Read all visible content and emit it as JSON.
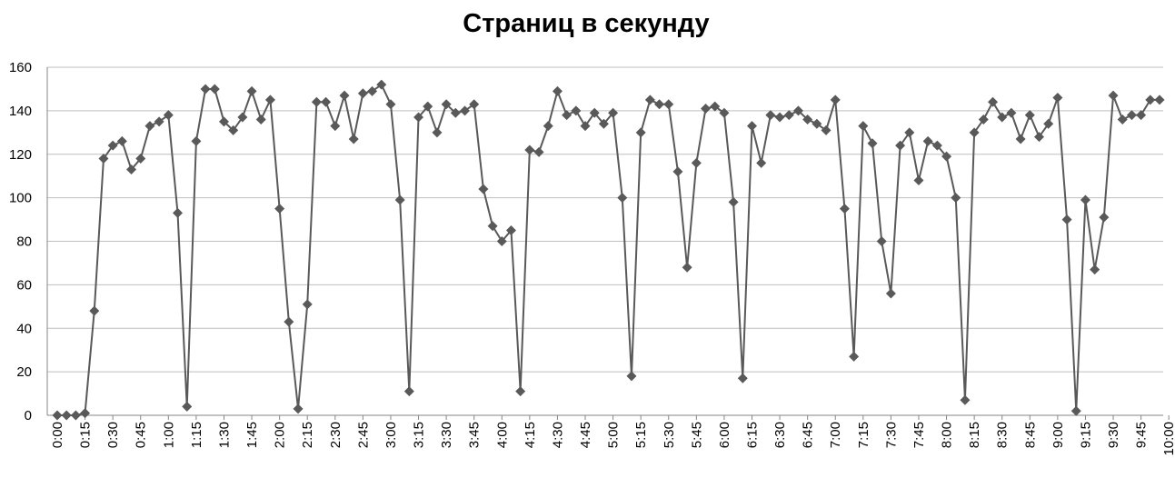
{
  "chart_data": {
    "type": "line",
    "title": "Страниц в секунду",
    "xlabel": "",
    "ylabel": "",
    "ylim": [
      0,
      160
    ],
    "yticks": [
      0,
      20,
      40,
      60,
      80,
      100,
      120,
      140,
      160
    ],
    "x_tick_labels": [
      "0:00",
      "0:15",
      "0:30",
      "0:45",
      "1:00",
      "1:15",
      "1:30",
      "1:45",
      "2:00",
      "2:15",
      "2:30",
      "2:45",
      "3:00",
      "3:15",
      "3:30",
      "3:45",
      "4:00",
      "4:15",
      "4:30",
      "4:45",
      "5:00",
      "5:15",
      "5:30",
      "5:45",
      "6:00",
      "6:15",
      "6:30",
      "6:45",
      "7:00",
      "7:15",
      "7:30",
      "7:45",
      "8:00",
      "8:15",
      "8:30",
      "8:45",
      "9:00",
      "9:15",
      "9:30",
      "9:45",
      "10:00"
    ],
    "grid": true,
    "legend": "none",
    "marker": "diamond",
    "color": "#595959",
    "values": [
      0,
      0,
      0,
      1,
      48,
      118,
      124,
      126,
      113,
      118,
      133,
      135,
      138,
      93,
      4,
      126,
      150,
      150,
      135,
      131,
      137,
      149,
      136,
      145,
      95,
      43,
      3,
      51,
      144,
      144,
      133,
      147,
      127,
      148,
      149,
      152,
      143,
      99,
      11,
      137,
      142,
      130,
      143,
      139,
      140,
      143,
      104,
      87,
      80,
      85,
      11,
      122,
      121,
      133,
      149,
      138,
      140,
      133,
      139,
      134,
      139,
      100,
      18,
      130,
      145,
      143,
      143,
      112,
      68,
      116,
      141,
      142,
      139,
      98,
      17,
      133,
      116,
      138,
      137,
      138,
      140,
      136,
      134,
      131,
      145,
      95,
      27,
      133,
      125,
      80,
      56,
      124,
      130,
      108,
      126,
      124,
      119,
      100,
      7,
      130,
      136,
      144,
      137,
      139,
      127,
      138,
      128,
      134,
      146,
      90,
      2,
      99,
      67,
      91,
      147,
      136,
      138,
      138,
      145,
      145
    ]
  }
}
